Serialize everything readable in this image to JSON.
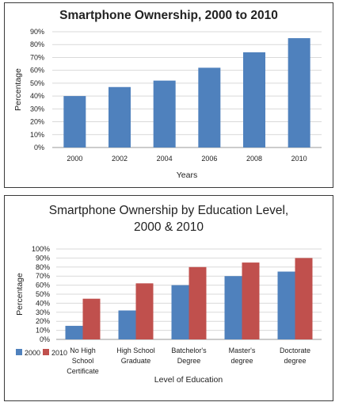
{
  "chart_data": [
    {
      "type": "bar",
      "title": "Smartphone Ownership, 2000 to 2010",
      "xlabel": "Years",
      "ylabel": "Percentage",
      "categories": [
        "2000",
        "2002",
        "2004",
        "2006",
        "2008",
        "2010"
      ],
      "values": [
        40,
        47,
        52,
        62,
        74,
        85
      ],
      "ylim": [
        0,
        90
      ],
      "yticks": [
        "0%",
        "10%",
        "20%",
        "30%",
        "40%",
        "50%",
        "60%",
        "70%",
        "80%",
        "90%"
      ],
      "grid": true,
      "colors": {
        "bar": "#4f81bd"
      }
    },
    {
      "type": "bar",
      "title": "Smartphone Ownership by Education Level, 2000 & 2010",
      "title_lines": [
        "Smartphone Ownership by Education Level,",
        "2000  & 2010"
      ],
      "xlabel": "Level of Education",
      "ylabel": "Percentage",
      "categories": [
        "No High School Certificate",
        "High School Graduate",
        "Batchelor's Degree",
        "Master's degree",
        "Doctorate degree"
      ],
      "category_lines": [
        [
          "No High",
          "School",
          "Certificate"
        ],
        [
          "High School",
          "Graduate"
        ],
        [
          "Batchelor's",
          "Degree"
        ],
        [
          "Master's",
          "degree"
        ],
        [
          "Doctorate",
          "degree"
        ]
      ],
      "series": [
        {
          "name": "2000",
          "values": [
            15,
            32,
            60,
            70,
            75
          ],
          "color": "#4f81bd"
        },
        {
          "name": "2010",
          "values": [
            45,
            62,
            80,
            85,
            90
          ],
          "color": "#c0504d"
        }
      ],
      "ylim": [
        0,
        100
      ],
      "yticks": [
        "0%",
        "10%",
        "20%",
        "30%",
        "40%",
        "50%",
        "60%",
        "70%",
        "80%",
        "90%",
        "100%"
      ],
      "grid": true,
      "legend": "bottom-left"
    }
  ]
}
